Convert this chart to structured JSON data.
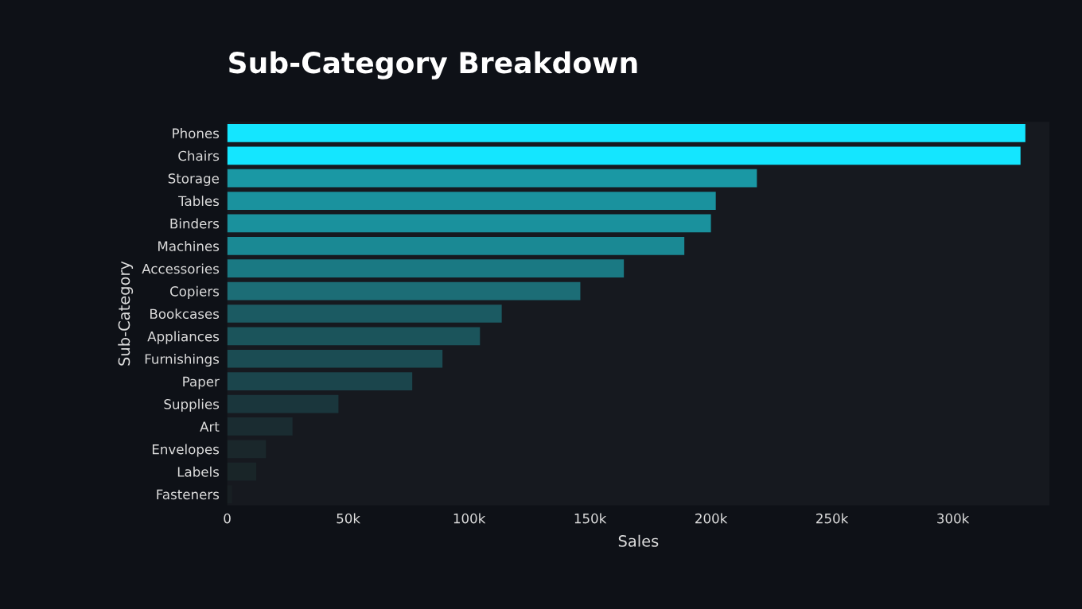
{
  "chart_data": {
    "type": "bar",
    "orientation": "horizontal",
    "title": "Sub-Category Breakdown",
    "xlabel": "Sales",
    "ylabel": "Sub-Category",
    "categories": [
      "Phones",
      "Chairs",
      "Storage",
      "Tables",
      "Binders",
      "Machines",
      "Accessories",
      "Copiers",
      "Bookcases",
      "Appliances",
      "Furnishings",
      "Paper",
      "Supplies",
      "Art",
      "Envelopes",
      "Labels",
      "Fasteners"
    ],
    "values": [
      330000,
      328000,
      219000,
      202000,
      200000,
      189000,
      164000,
      146000,
      113500,
      104500,
      89000,
      76500,
      46000,
      27000,
      16000,
      12000,
      2000
    ],
    "colors": [
      "#14e6ff",
      "#14e6ff",
      "#1a98a4",
      "#1a929e",
      "#1a919d",
      "#1a8994",
      "#1a7983",
      "#1c6d76",
      "#1b5a62",
      "#1b545b",
      "#1b4c53",
      "#1b454c",
      "#1a363c",
      "#1a2c31",
      "#1a272b",
      "#192528",
      "#181f23"
    ],
    "xlim": [
      0,
      340000
    ],
    "xticks": [
      0,
      {
        "value": 50000,
        "label": "50k"
      },
      {
        "value": 100000,
        "label": "100k"
      },
      {
        "value": 150000,
        "label": "150k"
      },
      {
        "value": 200000,
        "label": "200k"
      },
      {
        "value": 250000,
        "label": "250k"
      },
      {
        "value": 300000,
        "label": "300k"
      }
    ],
    "grid": false,
    "legend": false
  }
}
